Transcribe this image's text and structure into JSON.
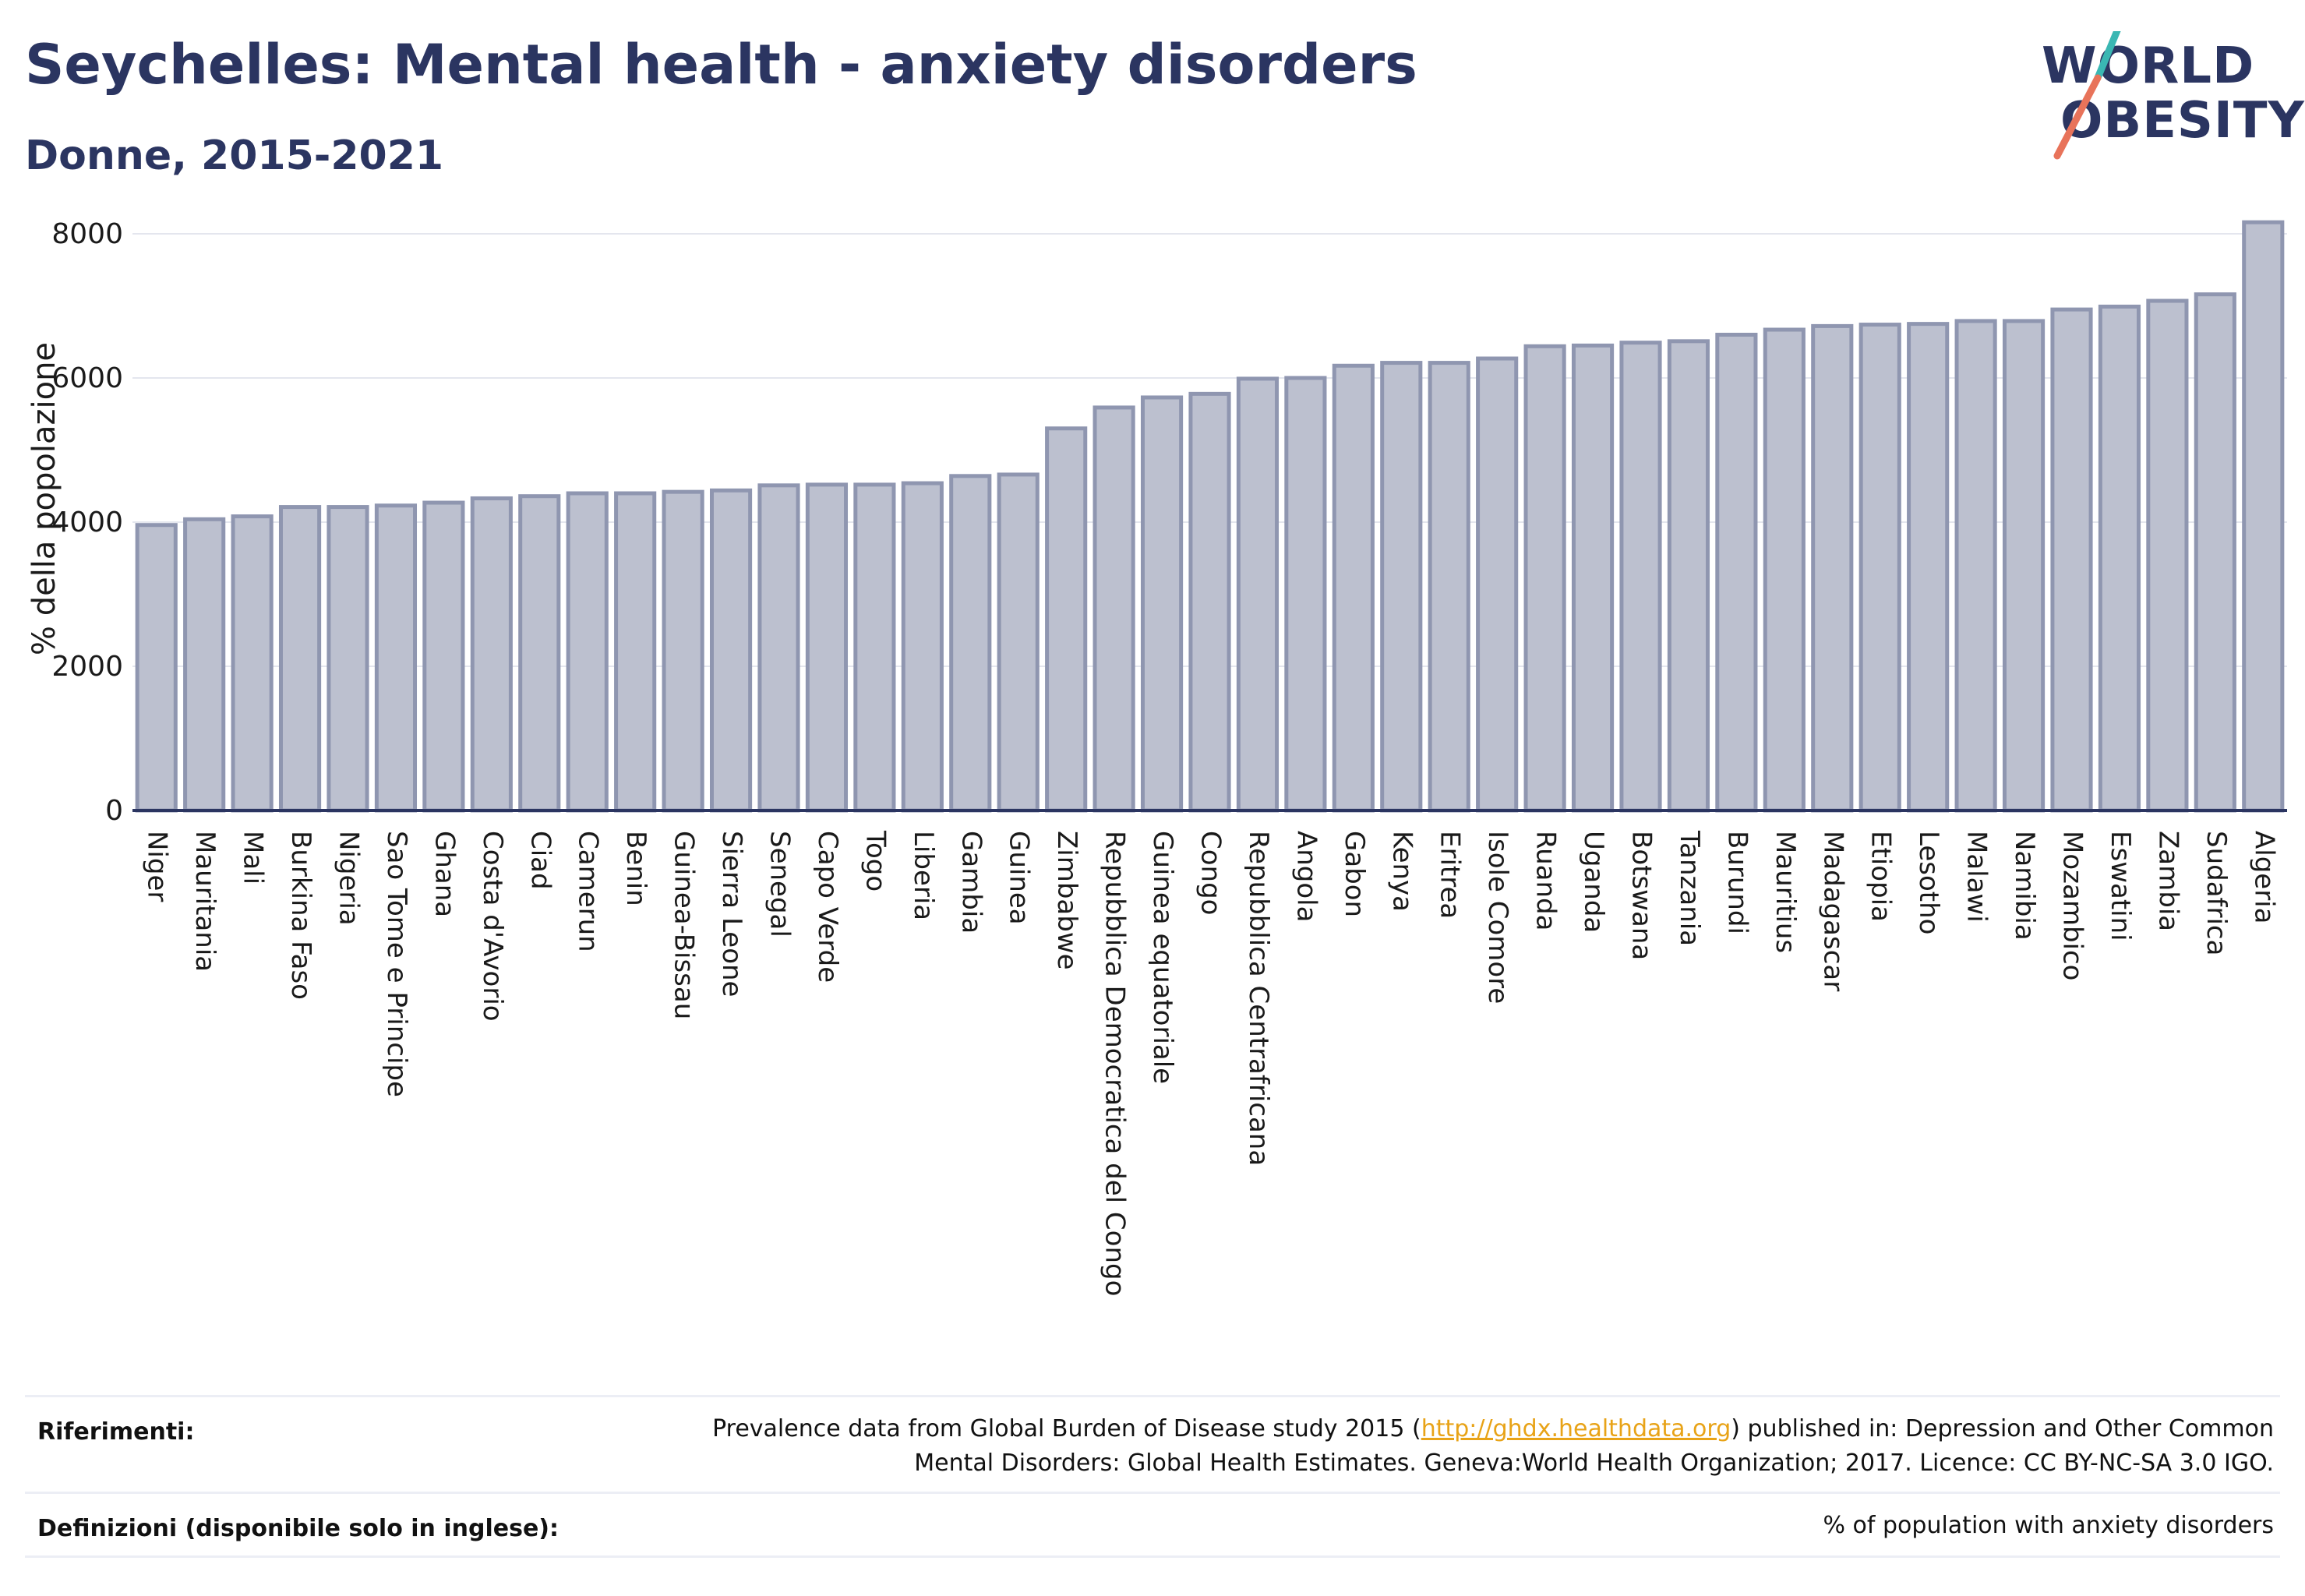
{
  "header": {
    "title": "Seychelles: Mental health - anxiety disorders",
    "subtitle": "Donne, 2015-2021"
  },
  "logo": {
    "line1": "WORLD",
    "line2": "OBESITY",
    "accent_teal": "#3ab7b3",
    "accent_coral": "#e8735a"
  },
  "colors": {
    "title": "#2b3561",
    "bar_fill": "#bcc0cf",
    "bar_stroke": "#8f96b0",
    "axis": "#2b3561",
    "grid": "#e4e6ee",
    "link": "#e8a317"
  },
  "chart_data": {
    "type": "bar",
    "title": "",
    "xlabel": "",
    "ylabel": "% della popolazione",
    "ylim": [
      0,
      8000
    ],
    "yticks": [
      0,
      2000,
      4000,
      6000,
      8000
    ],
    "grid": true,
    "categories": [
      "Niger",
      "Mauritania",
      "Mali",
      "Burkina Faso",
      "Nigeria",
      "Sao Tome e Principe",
      "Ghana",
      "Costa d'Avorio",
      "Ciad",
      "Camerun",
      "Benin",
      "Guinea-Bissau",
      "Sierra Leone",
      "Senegal",
      "Capo Verde",
      "Togo",
      "Liberia",
      "Gambia",
      "Guinea",
      "Zimbabwe",
      "Repubblica Democratica del Congo",
      "Guinea equatoriale",
      "Congo",
      "Repubblica Centrafricana",
      "Angola",
      "Gabon",
      "Kenya",
      "Eritrea",
      "Isole Comore",
      "Ruanda",
      "Uganda",
      "Botswana",
      "Tanzania",
      "Burundi",
      "Mauritius",
      "Madagascar",
      "Etiopia",
      "Lesotho",
      "Malawi",
      "Namibia",
      "Mozambico",
      "Eswatini",
      "Zambia",
      "Sudafrica",
      "Algeria"
    ],
    "values": [
      3960,
      4040,
      4080,
      4210,
      4210,
      4230,
      4270,
      4330,
      4360,
      4400,
      4400,
      4420,
      4440,
      4510,
      4520,
      4520,
      4540,
      4640,
      4660,
      5300,
      5590,
      5730,
      5780,
      5990,
      6000,
      6170,
      6210,
      6210,
      6270,
      6440,
      6450,
      6490,
      6510,
      6600,
      6670,
      6720,
      6740,
      6750,
      6790,
      6790,
      6950,
      6990,
      7070,
      7160,
      8160
    ]
  },
  "footer": {
    "references_label": "Riferimenti:",
    "references_before": "Prevalence data from Global Burden of Disease study 2015 (",
    "references_link": "http://ghdx.healthdata.org",
    "references_after": ") published in: Depression and Other Common",
    "references_line2": "Mental Disorders: Global Health Estimates. Geneva:World Health Organization; 2017. Licence: CC BY-NC-SA 3.0 IGO.",
    "definitions_label": "Definizioni (disponibile solo in inglese):",
    "definitions_text": "% of population with anxiety disorders"
  }
}
